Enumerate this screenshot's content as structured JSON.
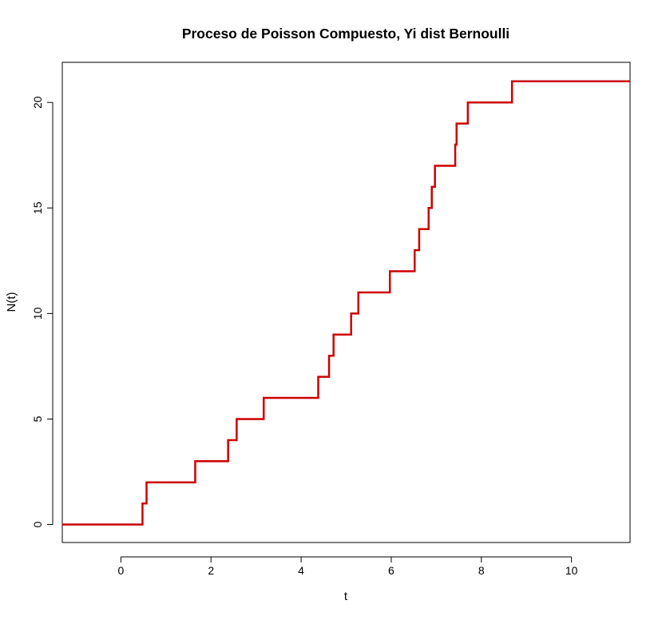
{
  "chart_data": {
    "type": "line",
    "title": "Proceso de Poisson Compuesto, Yi dist Bernoulli",
    "xlabel": "t",
    "ylabel": "N(t)",
    "xlim": [
      -1.3,
      11.3
    ],
    "ylim": [
      -0.85,
      21.9
    ],
    "x_ticks": [
      0,
      2,
      4,
      6,
      8,
      10
    ],
    "y_ticks": [
      0,
      5,
      10,
      15,
      20
    ],
    "grid": false,
    "legend": "none",
    "series": [
      {
        "color": "#CC0000",
        "step": "post",
        "x": [
          -1.3,
          0.48,
          0.57,
          1.65,
          2.38,
          2.57,
          3.17,
          4.38,
          4.62,
          4.72,
          5.11,
          5.27,
          5.97,
          6.52,
          6.62,
          6.83,
          6.9,
          6.97,
          7.42,
          7.45,
          7.7,
          8.68,
          11.3
        ],
        "y": [
          0,
          1,
          2,
          3,
          4,
          5,
          6,
          7,
          8,
          9,
          10,
          11,
          12,
          13,
          14,
          15,
          16,
          17,
          18,
          19,
          20,
          21,
          21
        ]
      }
    ]
  }
}
